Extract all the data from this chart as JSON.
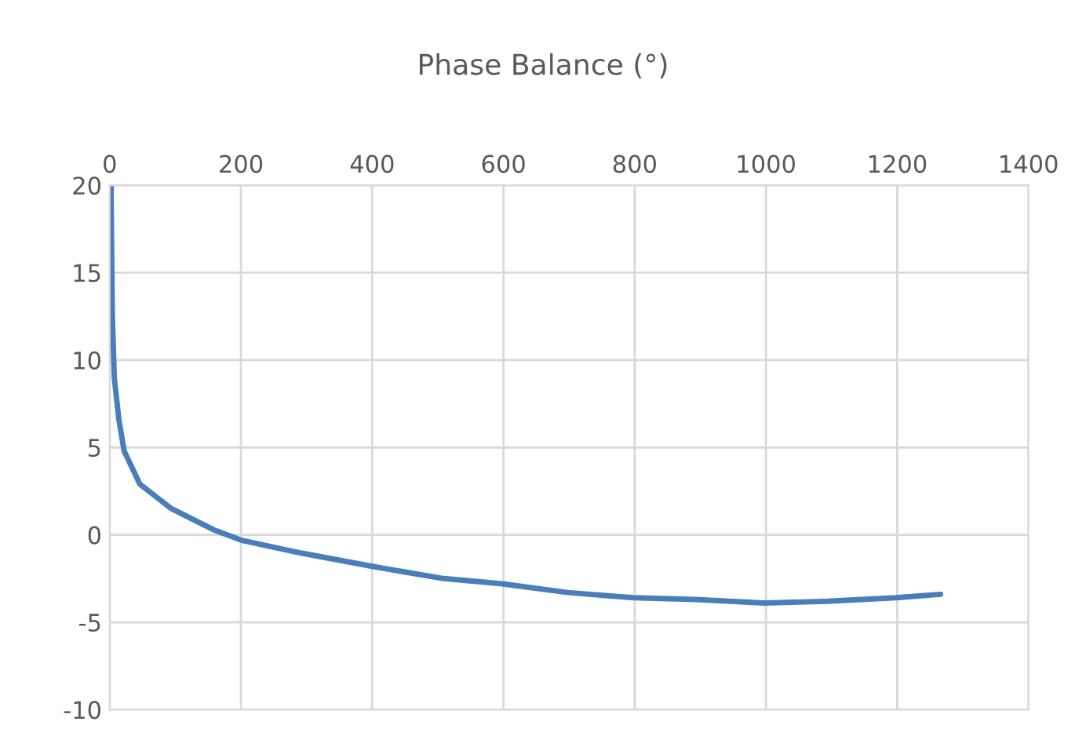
{
  "chart_data": {
    "type": "line",
    "title": "Phase Balance (°)",
    "x": [
      2,
      4,
      7,
      14,
      22,
      46,
      94,
      158,
      200,
      293,
      400,
      430,
      509,
      598,
      698,
      798,
      893,
      998,
      1094,
      1198,
      1266
    ],
    "series": [
      {
        "color": "#4a7ebb",
        "values": [
          20,
          12.6,
          9,
          6.6,
          4.8,
          2.9,
          1.5,
          0.3,
          -0.3,
          -1.05,
          -1.8,
          -2.0,
          -2.5,
          -2.8,
          -3.3,
          -3.6,
          -3.7,
          -3.9,
          -3.8,
          -3.6,
          -3.4
        ]
      }
    ],
    "xlim": [
      0,
      1400
    ],
    "xticks": [
      0,
      200,
      400,
      600,
      800,
      1000,
      1200,
      1400
    ],
    "ylim": [
      -10,
      20
    ],
    "yticks": [
      -10,
      -5,
      0,
      5,
      10,
      15,
      20
    ],
    "grid": true,
    "legend": false,
    "marker": "none",
    "line_style": "solid"
  }
}
